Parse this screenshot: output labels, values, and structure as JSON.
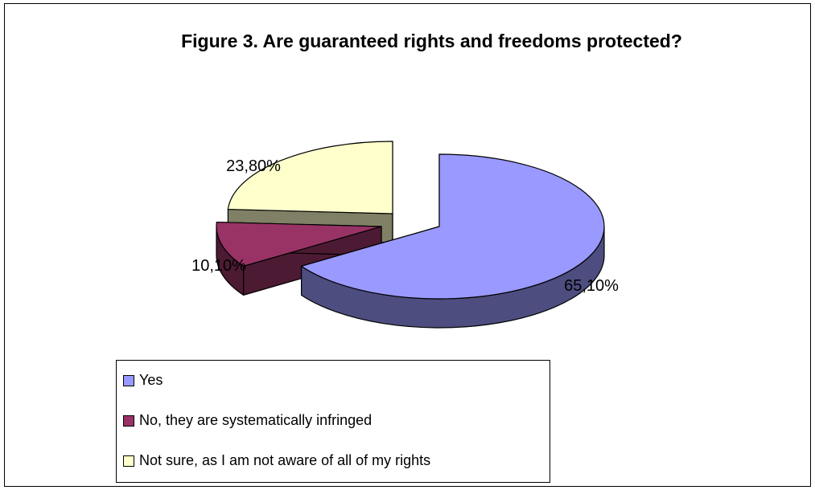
{
  "chart_data": {
    "type": "pie",
    "title": "Figure 3. Are guaranteed rights and freedoms protected?",
    "style": "3d-exploded",
    "legend_position": "bottom",
    "slices": [
      {
        "name": "Yes",
        "value": 65.1,
        "label": "65,10%",
        "color": "#9999ff",
        "side_color": "#4d4d80"
      },
      {
        "name": "No, they are systematically infringed",
        "value": 10.1,
        "label": "10,10%",
        "color": "#993366",
        "side_color": "#4d1a33"
      },
      {
        "name": "Not sure, as I am not aware of all of my rights",
        "value": 23.8,
        "label": "23,80%",
        "color": "#ffffcc",
        "side_color": "#808066"
      }
    ]
  }
}
